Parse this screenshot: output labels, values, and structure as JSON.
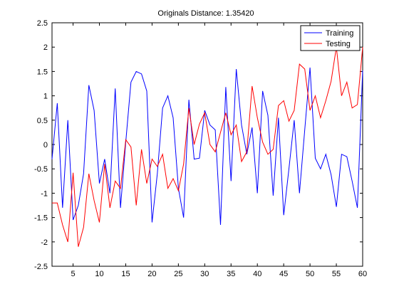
{
  "chart_data": {
    "type": "line",
    "title": "Originals Distance:  1.35420",
    "xlim": [
      1,
      60
    ],
    "ylim": [
      -2.5,
      2.5
    ],
    "xticks": [
      5,
      10,
      15,
      20,
      25,
      30,
      35,
      40,
      45,
      50,
      55,
      60
    ],
    "yticks": [
      -2.5,
      -2,
      -1.5,
      -1,
      -0.5,
      0,
      0.5,
      1,
      1.5,
      2,
      2.5
    ],
    "grid": false,
    "legend_position": "top-right",
    "x": [
      1,
      2,
      3,
      4,
      5,
      6,
      7,
      8,
      9,
      10,
      11,
      12,
      13,
      14,
      15,
      16,
      17,
      18,
      19,
      20,
      21,
      22,
      23,
      24,
      25,
      26,
      27,
      28,
      29,
      30,
      31,
      32,
      33,
      34,
      35,
      36,
      37,
      38,
      39,
      40,
      41,
      42,
      43,
      44,
      45,
      46,
      47,
      48,
      49,
      50,
      51,
      52,
      53,
      54,
      55,
      56,
      57,
      58,
      59,
      60
    ],
    "series": [
      {
        "name": "Training",
        "color": "#0000ff",
        "values": [
          -0.3,
          0.85,
          -1.3,
          0.5,
          -1.55,
          -1.25,
          -0.6,
          1.22,
          0.7,
          -0.8,
          -0.3,
          -1.0,
          1.15,
          -1.3,
          0.05,
          1.28,
          1.5,
          1.45,
          1.1,
          -1.6,
          -0.6,
          0.75,
          1.0,
          0.55,
          -0.9,
          -1.5,
          0.92,
          -0.3,
          -0.28,
          0.7,
          0.4,
          0.3,
          -1.65,
          1.18,
          -0.75,
          1.55,
          0.4,
          -0.2,
          0.35,
          -1.0,
          1.1,
          0.6,
          -1.05,
          0.55,
          -1.45,
          -0.5,
          0.5,
          -1.0,
          0.3,
          1.58,
          -0.28,
          -0.5,
          -0.2,
          -0.62,
          -1.28,
          -0.2,
          -0.25,
          -0.75,
          -1.3,
          1.52
        ]
      },
      {
        "name": "Testing",
        "color": "#ff0000",
        "values": [
          -1.2,
          -1.2,
          -1.65,
          -2.0,
          -0.58,
          -2.1,
          -1.7,
          -0.6,
          -1.15,
          -1.6,
          -0.4,
          -1.3,
          -0.75,
          -0.9,
          0.1,
          -0.05,
          -1.25,
          -0.1,
          -0.8,
          -0.3,
          -0.45,
          -0.2,
          -0.9,
          -0.7,
          -0.95,
          -0.4,
          0.75,
          0.0,
          0.42,
          0.65,
          0.0,
          -0.15,
          0.25,
          0.65,
          0.2,
          0.4,
          -0.35,
          -0.15,
          1.2,
          0.55,
          0.05,
          -0.2,
          -0.1,
          0.8,
          0.9,
          0.48,
          0.7,
          1.65,
          1.55,
          0.7,
          1.0,
          0.55,
          0.9,
          1.3,
          2.0,
          1.0,
          1.28,
          0.75,
          0.82,
          2.0
        ]
      }
    ]
  }
}
